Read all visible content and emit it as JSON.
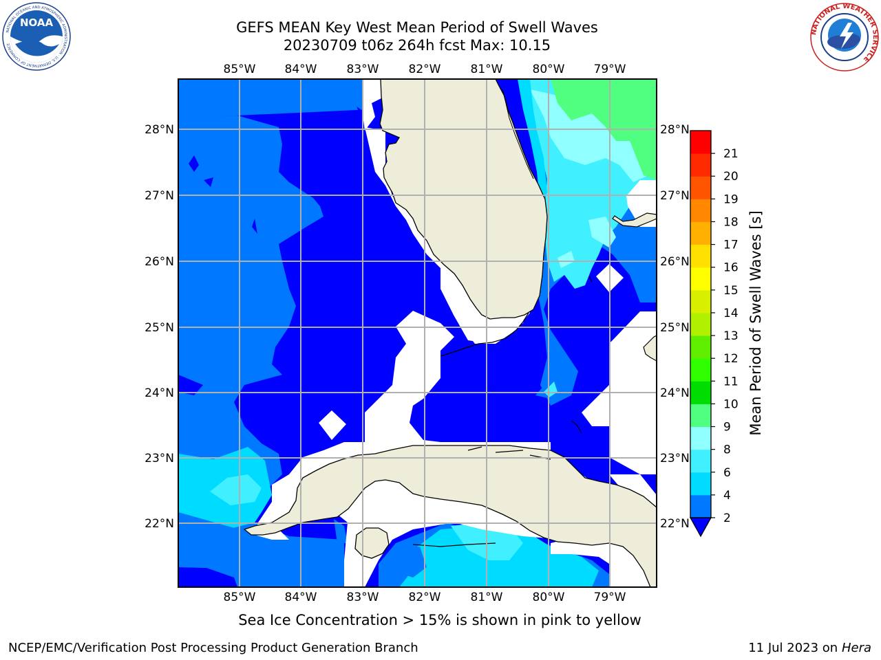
{
  "title": {
    "line1": "GEFS MEAN Key West Mean Period of Swell Waves",
    "line2": "20230709 t06z 264h fcst   Max: 10.15"
  },
  "logos": {
    "left": {
      "icon": "noaa-logo-icon",
      "text": "NOAA",
      "ring_text": "NATIONAL OCEANIC AND ATMOSPHERIC ADMINISTRATION · U.S. DEPARTMENT OF COMMERCE"
    },
    "right": {
      "icon": "nws-logo-icon",
      "ring_text": "NATIONAL WEATHER SERVICE"
    }
  },
  "map": {
    "lon_labels": [
      "85°W",
      "84°W",
      "83°W",
      "82°W",
      "81°W",
      "80°W",
      "79°W"
    ],
    "lat_labels_left": [
      "28°N",
      "27°N",
      "26°N",
      "25°N",
      "24°N",
      "23°N",
      "22°N"
    ],
    "lat_labels_right": [
      "28°N",
      "27°N",
      "26°N",
      "25°N",
      "24°N",
      "23°N",
      "22°N"
    ],
    "colors": {
      "land": "#eeedd9",
      "no_data": "#ffffff",
      "grid": "#b0b0b0"
    }
  },
  "colorbar": {
    "label": "Mean Period of Swell Waves [s]",
    "ticks": [
      "2",
      "4",
      "6",
      "8",
      "9",
      "10",
      "11",
      "12",
      "13",
      "14",
      "15",
      "16",
      "17",
      "18",
      "19",
      "20",
      "21"
    ],
    "colors": [
      "#0078ff",
      "#00dcff",
      "#40f0ff",
      "#90ffff",
      "#50ff80",
      "#00dd00",
      "#30ff00",
      "#60ee00",
      "#b0f000",
      "#d8f000",
      "#ffff00",
      "#ffe000",
      "#ffb000",
      "#ff8800",
      "#ff5500",
      "#ff2a00",
      "#ff0000"
    ],
    "under_color": "#0000ff"
  },
  "footer": {
    "note": "Sea Ice Concentration > 15% is shown in pink to yellow",
    "left": "NCEP/EMC/Verification Post Processing Product Generation Branch",
    "right_prefix": "11 Jul 2023 on ",
    "right_host": "Hera"
  }
}
